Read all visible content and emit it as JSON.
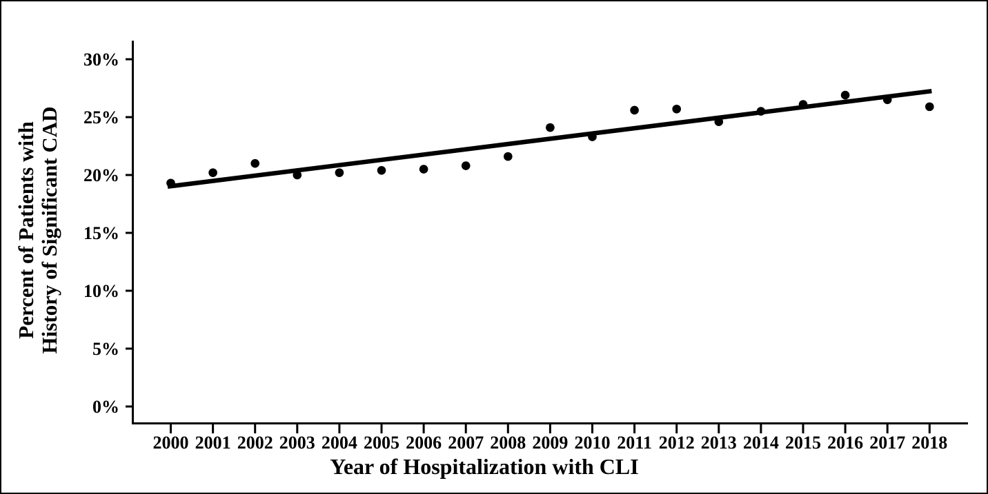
{
  "chart_data": {
    "type": "scatter",
    "title": "",
    "xlabel": "Year of Hospitalization with CLI",
    "ylabel": "Percent of Patients with History of Significant CAD",
    "ylabel_lines": [
      "Percent of Patients with",
      "History of Significant CAD"
    ],
    "x": [
      2000,
      2001,
      2002,
      2003,
      2004,
      2005,
      2006,
      2007,
      2008,
      2009,
      2010,
      2011,
      2012,
      2013,
      2014,
      2015,
      2016,
      2017,
      2018
    ],
    "x_tick_labels": [
      "2000",
      "2001",
      "2002",
      "2003",
      "2004",
      "2005",
      "2006",
      "2007",
      "2008",
      "2009",
      "2010",
      "2011",
      "2012",
      "2013",
      "2014",
      "2015",
      "2016",
      "2017",
      "2018"
    ],
    "values": [
      19.3,
      20.2,
      21.0,
      20.0,
      20.2,
      20.4,
      20.5,
      20.8,
      21.6,
      24.1,
      23.3,
      25.6,
      25.7,
      24.6,
      25.5,
      26.1,
      26.9,
      26.5,
      25.9
    ],
    "trendline": {
      "type": "linear",
      "x_start": 2000,
      "y_start": 19.0,
      "x_end": 2018,
      "y_end": 27.25
    },
    "y_ticks": [
      0,
      5,
      10,
      15,
      20,
      25,
      30
    ],
    "y_tick_labels": [
      "0%",
      "5%",
      "10%",
      "15%",
      "20%",
      "25%",
      "30%"
    ],
    "xlim": [
      1999.1,
      2019.0
    ],
    "ylim": [
      -1.5,
      33
    ],
    "grid": false,
    "legend": null,
    "colors": {
      "points": "#000000",
      "trendline": "#000000",
      "axis": "#000000",
      "background": "#ffffff",
      "frame_border": "#000000"
    }
  }
}
